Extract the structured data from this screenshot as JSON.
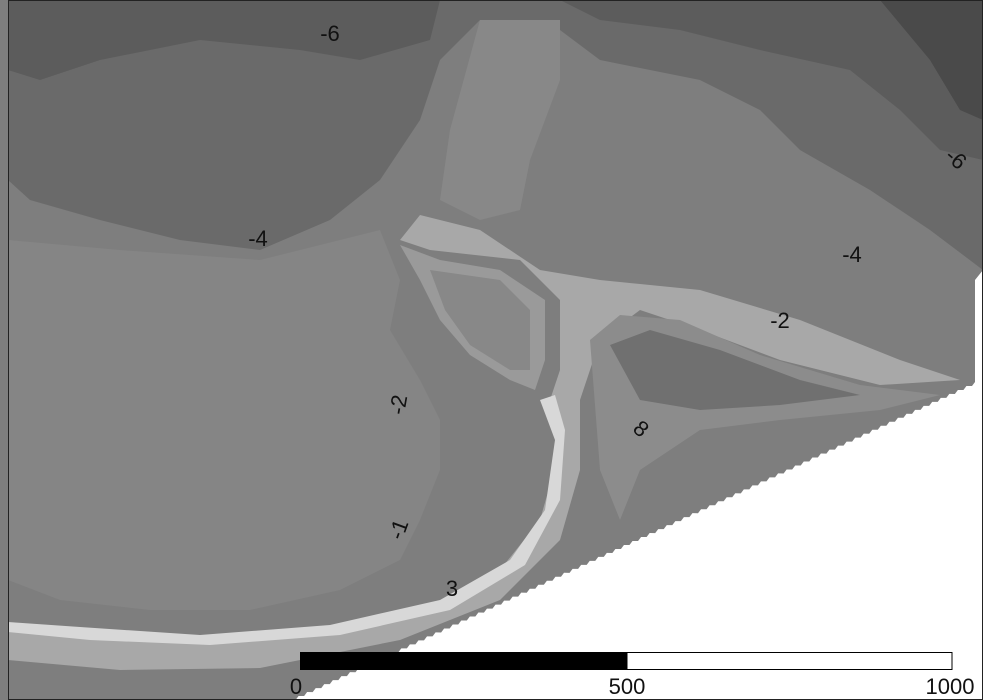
{
  "contour_labels": [
    "-6",
    "-6",
    "-4",
    "-4",
    "-2",
    "-2",
    "-1",
    "3",
    "8"
  ],
  "scale_bar": {
    "labels": [
      "0",
      "500",
      "1000"
    ]
  }
}
